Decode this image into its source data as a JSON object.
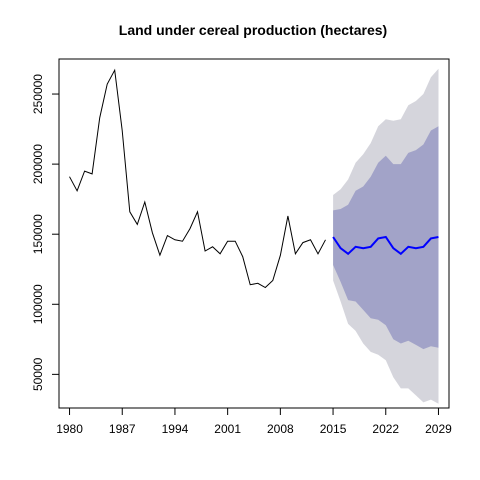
{
  "chart_data": {
    "type": "line",
    "title": "Land under cereal production (hectares)",
    "xlabel": "",
    "ylabel": "",
    "xlim": [
      1978.6,
      2030.4
    ],
    "ylim": [
      26000,
      275000
    ],
    "x_ticks": [
      1980,
      1987,
      1994,
      2001,
      2008,
      2015,
      2022,
      2029
    ],
    "x_tick_labels": [
      "1980",
      "1987",
      "1994",
      "2001",
      "2008",
      "2015",
      "2022",
      "2029"
    ],
    "y_ticks": [
      50000,
      100000,
      150000,
      200000,
      250000
    ],
    "y_tick_labels": [
      "50000",
      "100000",
      "150000",
      "200000",
      "250000"
    ],
    "grid": false,
    "colors": {
      "history": "#000000",
      "forecast": "#0000ff",
      "band_80": "#a2a3c8",
      "band_95": "#d5d5dc"
    },
    "history": {
      "x": [
        1980,
        1981,
        1982,
        1983,
        1984,
        1985,
        1986,
        1987,
        1988,
        1989,
        1990,
        1991,
        1992,
        1993,
        1994,
        1995,
        1996,
        1997,
        1998,
        1999,
        2000,
        2001,
        2002,
        2003,
        2004,
        2005,
        2006,
        2007,
        2008,
        2009,
        2010,
        2011,
        2012,
        2013,
        2014
      ],
      "y": [
        191000,
        181000,
        195000,
        193000,
        233000,
        257000,
        267000,
        224000,
        166000,
        157000,
        173000,
        151000,
        135000,
        149000,
        146000,
        145000,
        154000,
        166000,
        138000,
        141000,
        136000,
        145000,
        145000,
        134000,
        114000,
        115000,
        112000,
        117000,
        135000,
        163000,
        136000,
        144000,
        146000,
        136000,
        146000
      ]
    },
    "forecast": {
      "x": [
        2015,
        2016,
        2017,
        2018,
        2019,
        2020,
        2021,
        2022,
        2023,
        2024,
        2025,
        2026,
        2027,
        2028,
        2029
      ],
      "mean": [
        148000,
        140000,
        136000,
        141000,
        140000,
        141000,
        147000,
        148000,
        140000,
        136000,
        141000,
        140000,
        141000,
        147000,
        148000
      ],
      "lo80": [
        128000,
        116000,
        103000,
        102000,
        96000,
        90000,
        89000,
        85000,
        75000,
        72000,
        74000,
        71000,
        68000,
        70000,
        69000
      ],
      "hi80": [
        167000,
        168000,
        171000,
        181000,
        184000,
        191000,
        201000,
        206000,
        200000,
        200000,
        208000,
        210000,
        214000,
        224000,
        227000
      ],
      "lo95": [
        117000,
        102000,
        86000,
        81000,
        72000,
        66000,
        64000,
        60000,
        48000,
        40000,
        40000,
        35000,
        30000,
        32000,
        29000
      ],
      "hi95": [
        178000,
        182000,
        189000,
        201000,
        207000,
        215000,
        227000,
        232000,
        231000,
        232000,
        242000,
        245000,
        250000,
        262000,
        268000
      ]
    }
  }
}
